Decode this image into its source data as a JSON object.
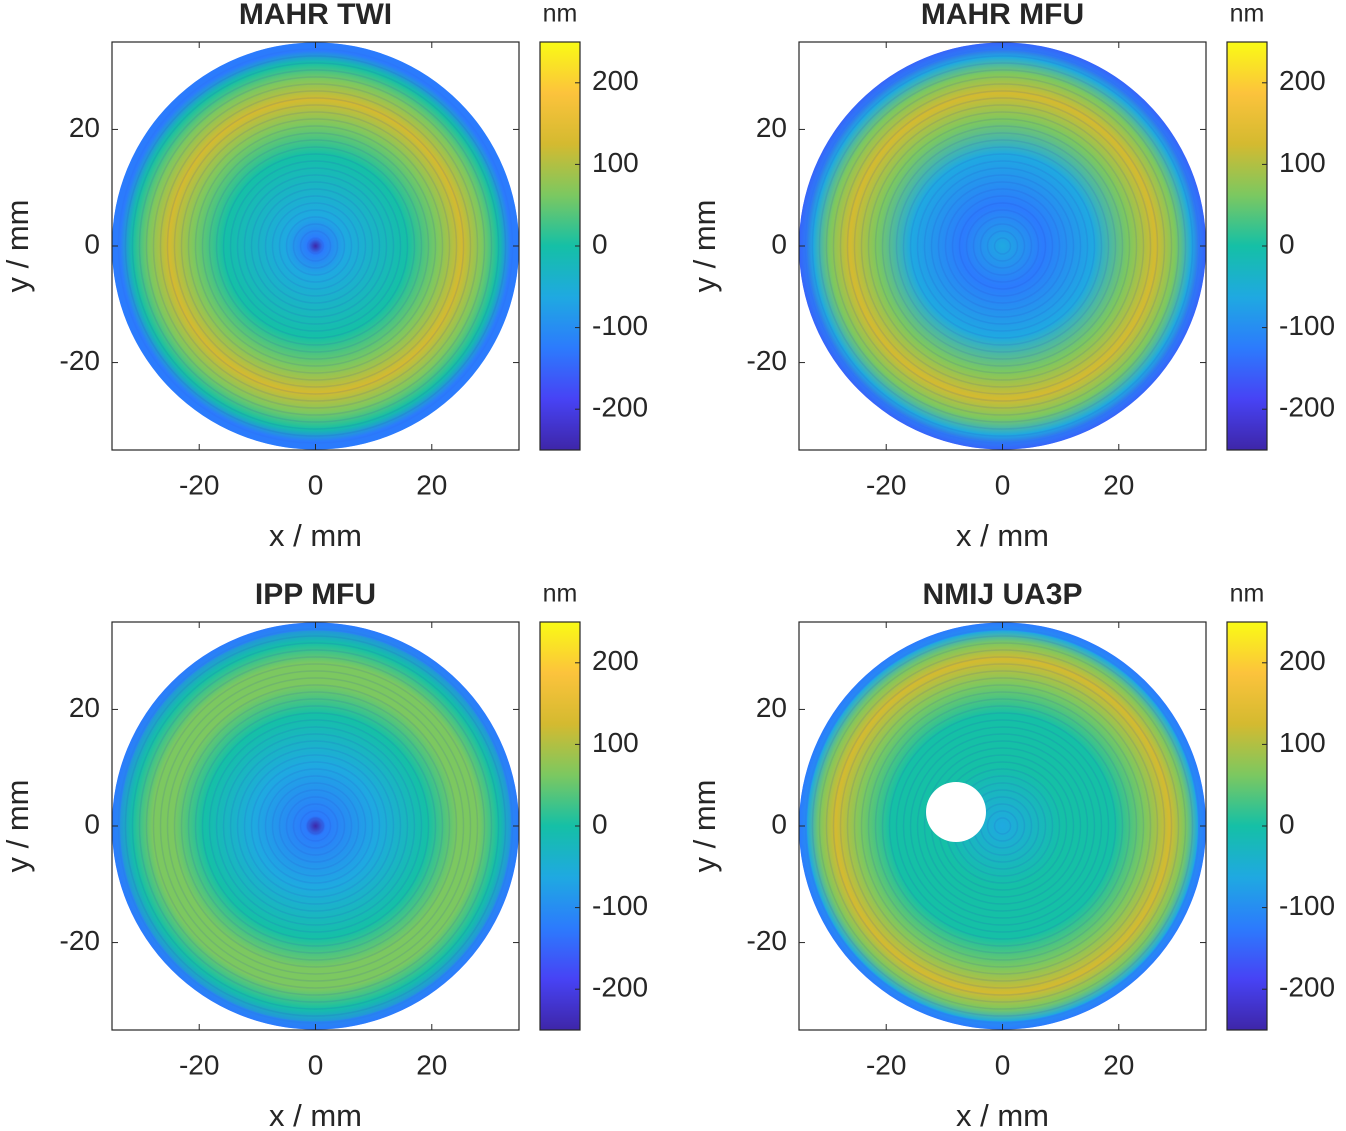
{
  "chart_data": [
    {
      "type": "heatmap",
      "title": "MAHR TWI",
      "xlabel": "x / mm",
      "ylabel": "y / mm",
      "colorbar_label": "nm",
      "xlim": [
        -35,
        35
      ],
      "ylim": [
        -35,
        35
      ],
      "xticks": [
        -20,
        0,
        20
      ],
      "yticks": [
        -20,
        0,
        20
      ],
      "clim": [
        -250,
        250
      ],
      "cticks": [
        -200,
        -100,
        0,
        100,
        200
      ],
      "colormap": [
        "#3e26a8",
        "#4743f5",
        "#2c7bfd",
        "#1fa9e1",
        "#15c0a6",
        "#7cc860",
        "#d4ba30",
        "#fcc33c",
        "#f9fb15"
      ]
    },
    {
      "type": "heatmap",
      "title": "MAHR MFU",
      "xlabel": "x / mm",
      "ylabel": "y / mm",
      "colorbar_label": "nm",
      "xlim": [
        -35,
        35
      ],
      "ylim": [
        -35,
        35
      ],
      "xticks": [
        -20,
        0,
        20
      ],
      "yticks": [
        -20,
        0,
        20
      ],
      "clim": [
        -250,
        250
      ],
      "cticks": [
        -200,
        -100,
        0,
        100,
        200
      ],
      "colormap": [
        "#3e26a8",
        "#4743f5",
        "#2c7bfd",
        "#1fa9e1",
        "#15c0a6",
        "#7cc860",
        "#d4ba30",
        "#fcc33c",
        "#f9fb15"
      ]
    },
    {
      "type": "heatmap",
      "title": "IPP MFU",
      "xlabel": "x / mm",
      "ylabel": "y / mm",
      "colorbar_label": "nm",
      "xlim": [
        -35,
        35
      ],
      "ylim": [
        -35,
        35
      ],
      "xticks": [
        -20,
        0,
        20
      ],
      "yticks": [
        -20,
        0,
        20
      ],
      "clim": [
        -250,
        250
      ],
      "cticks": [
        -200,
        -100,
        0,
        100,
        200
      ],
      "colormap": [
        "#3e26a8",
        "#4743f5",
        "#2c7bfd",
        "#1fa9e1",
        "#15c0a6",
        "#7cc860",
        "#d4ba30",
        "#fcc33c",
        "#f9fb15"
      ]
    },
    {
      "type": "heatmap",
      "title": "NMIJ UA3P",
      "xlabel": "x / mm",
      "ylabel": "y / mm",
      "colorbar_label": "nm",
      "xlim": [
        -35,
        35
      ],
      "ylim": [
        -35,
        35
      ],
      "xticks": [
        -20,
        0,
        20
      ],
      "yticks": [
        -20,
        0,
        20
      ],
      "clim": [
        -250,
        250
      ],
      "cticks": [
        -200,
        -100,
        0,
        100,
        200
      ],
      "colormap": [
        "#3e26a8",
        "#4743f5",
        "#2c7bfd",
        "#1fa9e1",
        "#15c0a6",
        "#7cc860",
        "#d4ba30",
        "#fcc33c",
        "#f9fb15"
      ]
    }
  ]
}
